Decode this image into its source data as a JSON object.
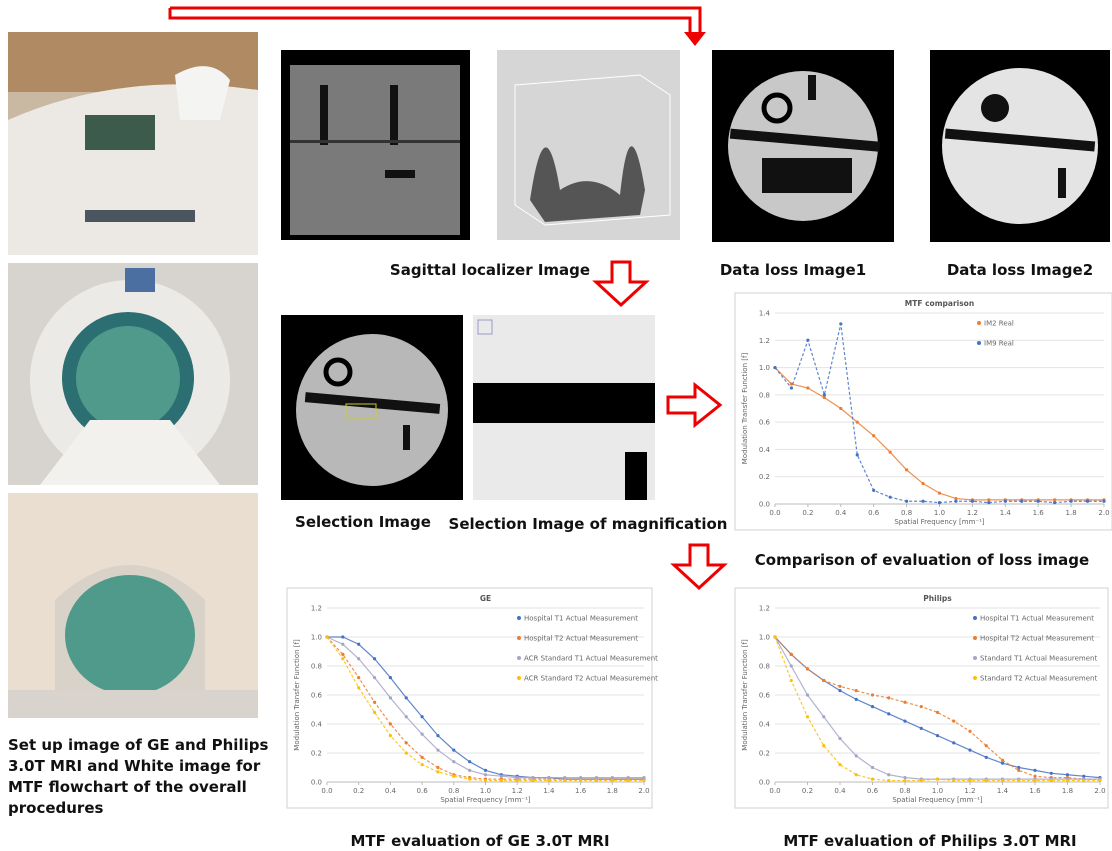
{
  "captions": {
    "setup": [
      "Set up image of GE and Philips",
      "3.0T MRI and White image for",
      "MTF flowchart of the overall",
      "procedures"
    ],
    "sagittal": "Sagittal localizer Image",
    "data_loss_1": "Data loss Image1",
    "data_loss_2": "Data loss Image2",
    "selection": "Selection Image",
    "magnification": "Selection Image of magnification",
    "comparison": "Comparison of evaluation of loss image",
    "ge": "MTF evaluation of GE 3.0T MRI",
    "philips": "MTF evaluation of Philips 3.0T MRI"
  },
  "charts": [
    {
      "type": "scatter",
      "title": "MTF comparison",
      "xlabel": "Spatial Frequency [mm⁻¹]",
      "ylabel": "Modulation Transfer Function [f]",
      "xlim": [
        0,
        2
      ],
      "ylim": [
        0,
        1.4
      ],
      "xticks": [
        {
          "value": 0,
          "label": "0.0"
        },
        0.2,
        0.4,
        0.6,
        0.8,
        {
          "value": 1,
          "label": "1.0"
        },
        1.2,
        1.4,
        1.6,
        1.8,
        {
          "value": 2,
          "label": "2.0"
        }
      ],
      "yticks": [
        {
          "value": 0,
          "label": "0.0"
        },
        0.2,
        0.4,
        0.6,
        0.8,
        {
          "value": 1,
          "label": "1.0"
        },
        1.2,
        1.4
      ],
      "grid": true,
      "x": [
        0,
        0.1,
        0.2,
        0.3,
        0.4,
        0.5,
        0.6,
        0.7,
        0.8,
        0.9,
        1,
        1.1,
        1.2,
        1.3,
        1.4,
        1.5,
        1.6,
        1.7,
        1.8,
        1.9,
        2
      ],
      "series": [
        {
          "name": "IM2 Real",
          "color": "#ed7d31",
          "values": [
            1.0,
            0.88,
            0.85,
            0.78,
            0.7,
            0.6,
            0.5,
            0.38,
            0.25,
            0.15,
            0.08,
            0.04,
            0.03,
            0.03,
            0.03,
            0.03,
            0.03,
            0.03,
            0.03,
            0.03,
            0.03
          ]
        },
        {
          "name": "IM9 Real",
          "color": "#4472c4",
          "values": [
            1.0,
            0.85,
            1.2,
            0.8,
            1.32,
            0.36,
            0.1,
            0.05,
            0.02,
            0.02,
            0.01,
            0.02,
            0.02,
            0.01,
            0.02,
            0.02,
            0.02,
            0.01,
            0.02,
            0.02,
            0.02
          ]
        }
      ]
    },
    {
      "type": "scatter",
      "title": "GE",
      "xlabel": "Spatial Frequency [mm⁻¹]",
      "ylabel": "Modulation Transfer Function [f]",
      "xlim": [
        0,
        2
      ],
      "ylim": [
        0,
        1.2
      ],
      "xticks": [
        {
          "value": 0,
          "label": "0.0"
        },
        0.2,
        0.4,
        0.6,
        0.8,
        {
          "value": 1,
          "label": "1.0"
        },
        1.2,
        1.4,
        1.6,
        1.8,
        {
          "value": 2,
          "label": "2.0"
        }
      ],
      "yticks": [
        {
          "value": 0,
          "label": "0.0"
        },
        0.2,
        0.4,
        0.6,
        0.8,
        {
          "value": 1,
          "label": "1.0"
        },
        1.2
      ],
      "grid": true,
      "x": [
        0,
        0.1,
        0.2,
        0.3,
        0.4,
        0.5,
        0.6,
        0.7,
        0.8,
        0.9,
        1,
        1.1,
        1.2,
        1.3,
        1.4,
        1.5,
        1.6,
        1.7,
        1.8,
        1.9,
        2
      ],
      "series": [
        {
          "name": "Hospital T1  Actual Measurement",
          "color": "#4472c4",
          "values": [
            1.0,
            1.0,
            0.95,
            0.85,
            0.72,
            0.58,
            0.45,
            0.32,
            0.22,
            0.14,
            0.08,
            0.05,
            0.04,
            0.03,
            0.03,
            0.02,
            0.02,
            0.02,
            0.02,
            0.02,
            0.02
          ]
        },
        {
          "name": "Hospital T2 Actual Measurement",
          "color": "#ed7d31",
          "values": [
            1.0,
            0.88,
            0.72,
            0.55,
            0.4,
            0.27,
            0.17,
            0.1,
            0.05,
            0.03,
            0.02,
            0.02,
            0.02,
            0.02,
            0.02,
            0.02,
            0.02,
            0.02,
            0.02,
            0.02,
            0.02
          ]
        },
        {
          "name": "ACR Standard T1  Actual Measurement",
          "color": "#a5a5c8",
          "values": [
            1.0,
            0.95,
            0.85,
            0.72,
            0.58,
            0.45,
            0.33,
            0.22,
            0.14,
            0.08,
            0.05,
            0.04,
            0.03,
            0.03,
            0.03,
            0.03,
            0.03,
            0.03,
            0.03,
            0.03,
            0.03
          ]
        },
        {
          "name": "ACR Standard T2  Actual Measurement",
          "color": "#ffc000",
          "values": [
            1.0,
            0.85,
            0.65,
            0.48,
            0.32,
            0.2,
            0.12,
            0.07,
            0.04,
            0.02,
            0.01,
            0.01,
            0.01,
            0.01,
            0.01,
            0.01,
            0.01,
            0.01,
            0.01,
            0.01,
            0.01
          ]
        }
      ]
    },
    {
      "type": "scatter",
      "title": "Philips",
      "xlabel": "Spatial Frequency [mm⁻¹]",
      "ylabel": "Modulation Transfer Function [f]",
      "xlim": [
        0,
        2
      ],
      "ylim": [
        0,
        1.2
      ],
      "xticks": [
        {
          "value": 0,
          "label": "0.0"
        },
        0.2,
        0.4,
        0.6,
        0.8,
        {
          "value": 1,
          "label": "1.0"
        },
        1.2,
        1.4,
        1.6,
        1.8,
        {
          "value": 2,
          "label": "2.0"
        }
      ],
      "yticks": [
        {
          "value": 0,
          "label": "0.0"
        },
        0.2,
        0.4,
        0.6,
        0.8,
        {
          "value": 1,
          "label": "1.0"
        },
        1.2
      ],
      "grid": true,
      "x": [
        0,
        0.1,
        0.2,
        0.3,
        0.4,
        0.5,
        0.6,
        0.7,
        0.8,
        0.9,
        1,
        1.1,
        1.2,
        1.3,
        1.4,
        1.5,
        1.6,
        1.7,
        1.8,
        1.9,
        2
      ],
      "series": [
        {
          "name": "Hospital T1  Actual Measurement",
          "color": "#4472c4",
          "values": [
            1.0,
            0.88,
            0.78,
            0.7,
            0.63,
            0.57,
            0.52,
            0.47,
            0.42,
            0.37,
            0.32,
            0.27,
            0.22,
            0.17,
            0.13,
            0.1,
            0.08,
            0.06,
            0.05,
            0.04,
            0.03
          ]
        },
        {
          "name": "Hospital T2  Actual Measurement",
          "color": "#ed7d31",
          "values": [
            1.0,
            0.88,
            0.78,
            0.7,
            0.66,
            0.63,
            0.6,
            0.58,
            0.55,
            0.52,
            0.48,
            0.42,
            0.35,
            0.25,
            0.15,
            0.08,
            0.04,
            0.03,
            0.03,
            0.02,
            0.02
          ]
        },
        {
          "name": "Standard T1  Actual Measurement",
          "color": "#a5a5c8",
          "values": [
            1.0,
            0.8,
            0.6,
            0.45,
            0.3,
            0.18,
            0.1,
            0.05,
            0.03,
            0.02,
            0.02,
            0.02,
            0.02,
            0.02,
            0.02,
            0.02,
            0.02,
            0.02,
            0.02,
            0.02,
            0.02
          ]
        },
        {
          "name": "Standard T2  Actual Measurement",
          "color": "#ffc000",
          "values": [
            1.0,
            0.7,
            0.45,
            0.25,
            0.12,
            0.05,
            0.02,
            0.01,
            0.01,
            0.01,
            0.02,
            0.01,
            0.01,
            0.01,
            0.01,
            0.01,
            0.01,
            0.01,
            0.01,
            0.01,
            0.01
          ]
        }
      ]
    }
  ]
}
